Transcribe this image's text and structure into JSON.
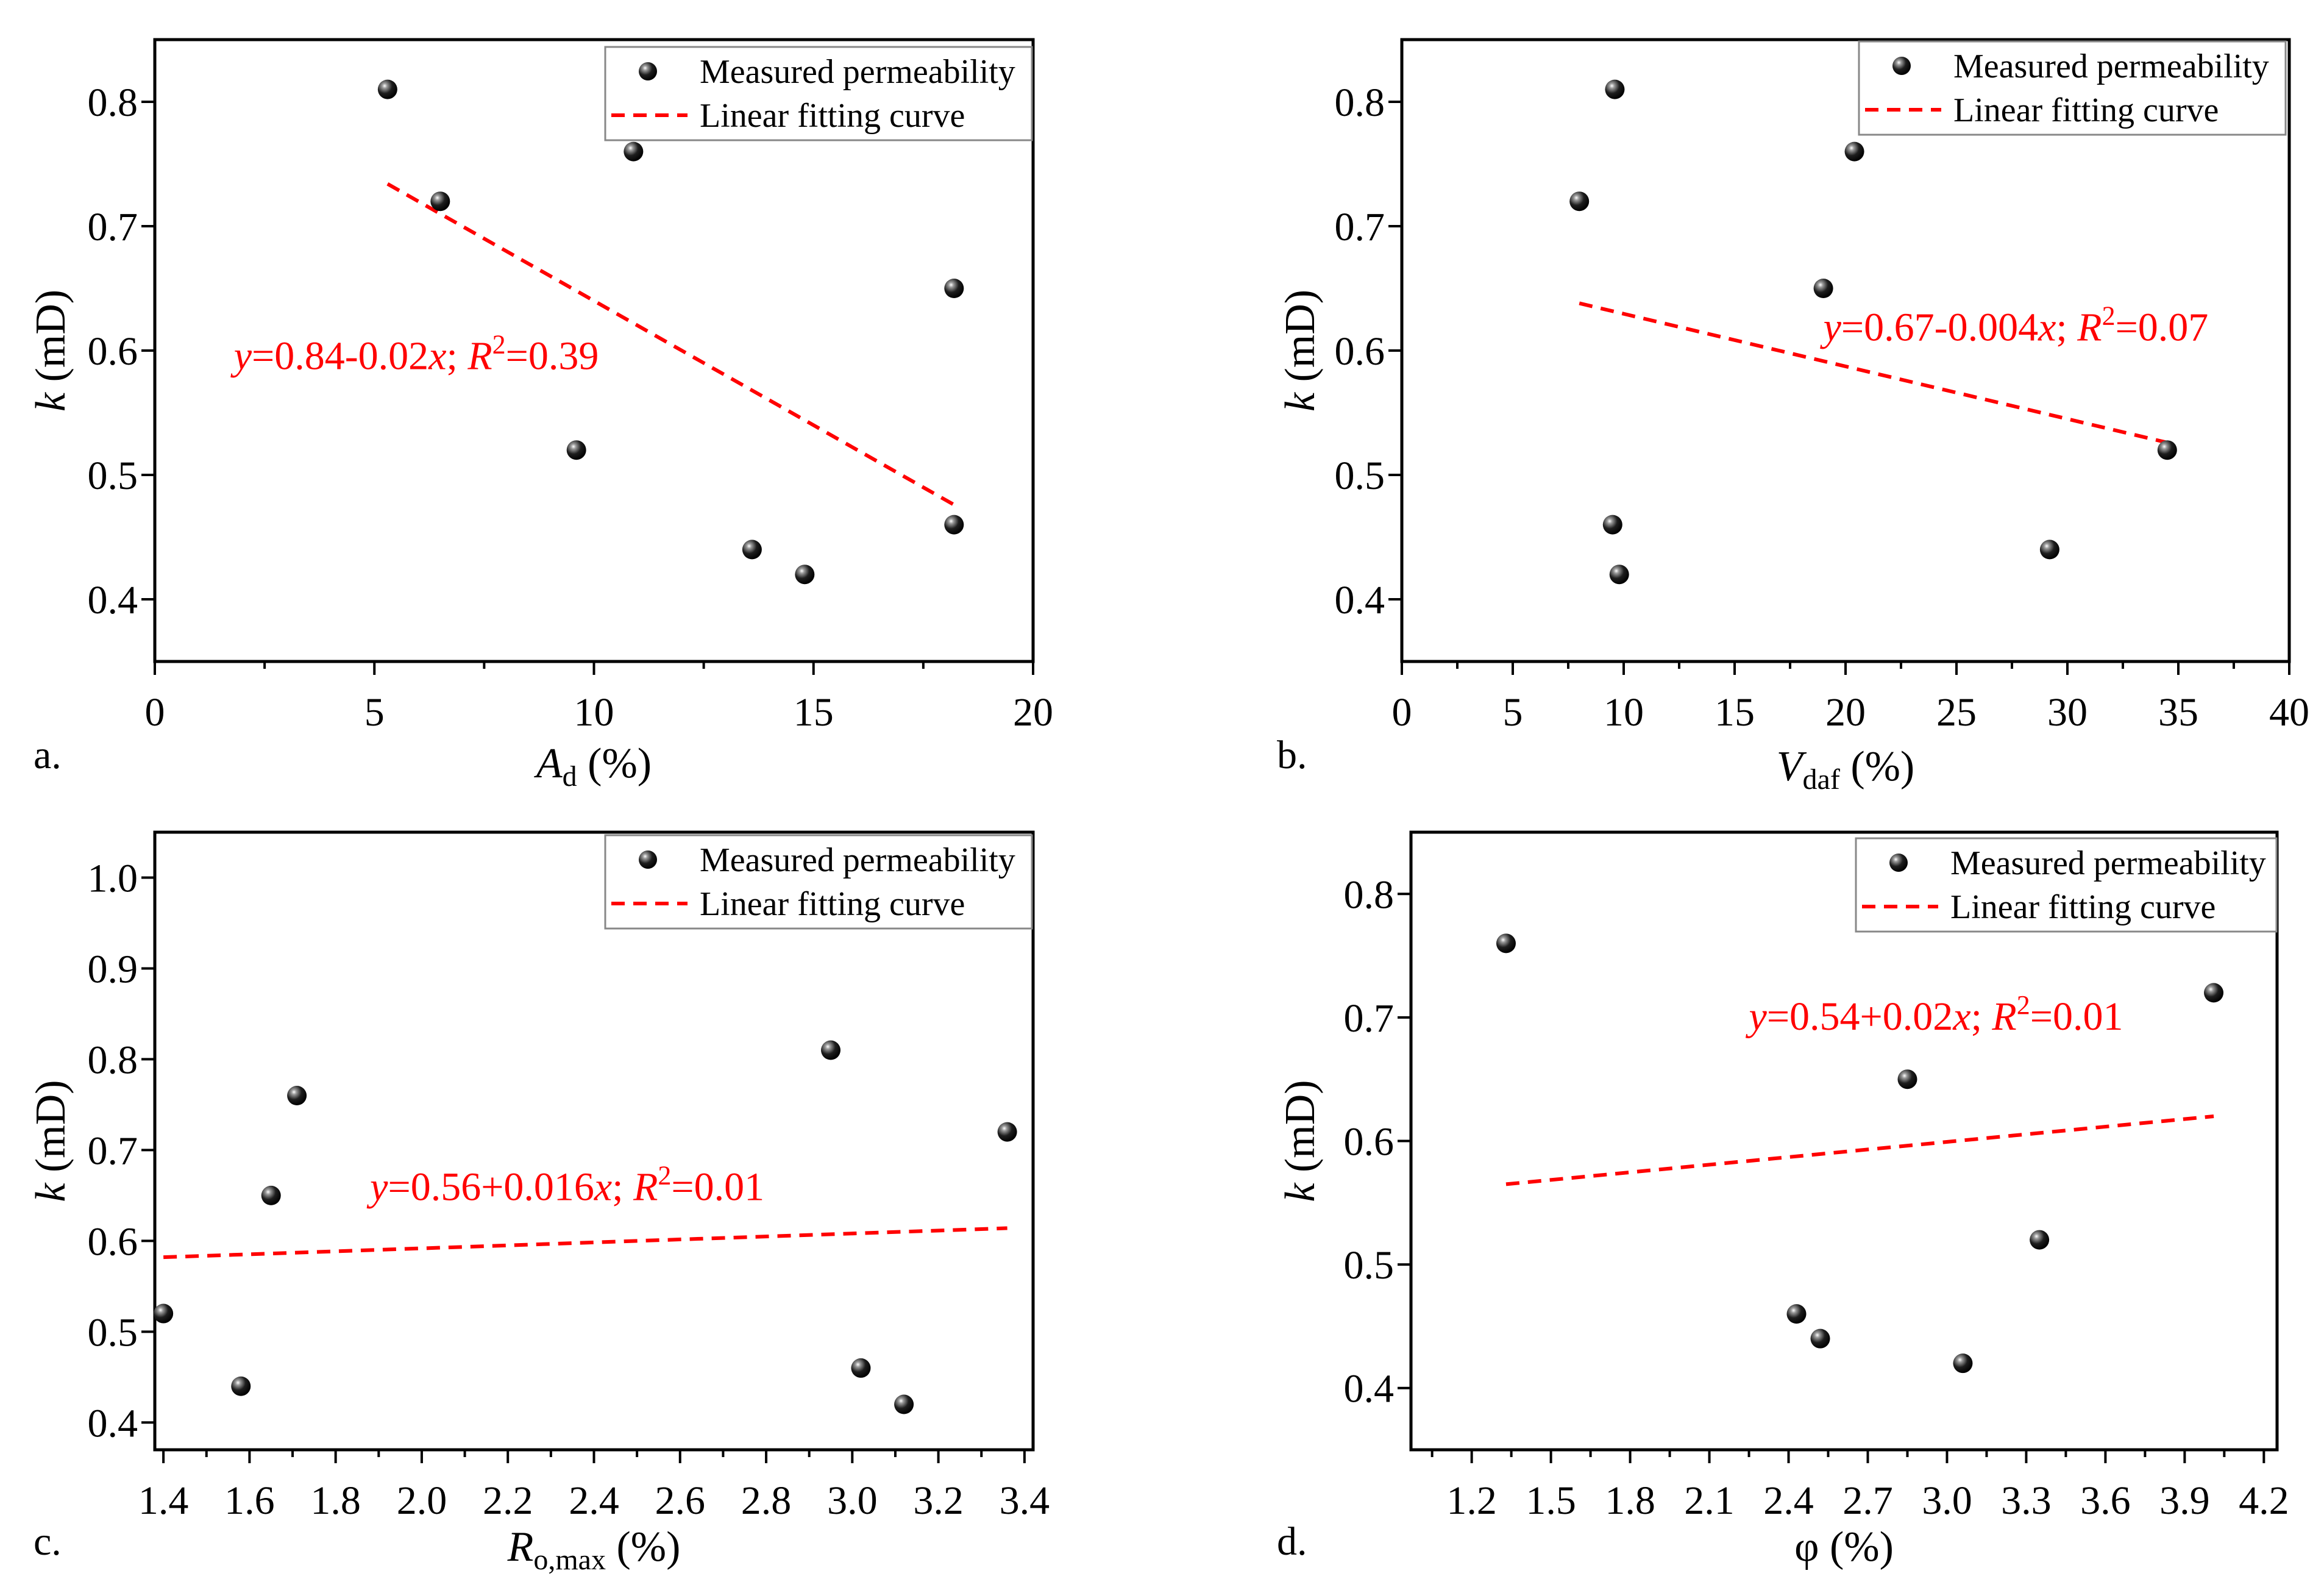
{
  "legend": {
    "measured": "Measured permeability",
    "fit": "Linear fitting curve"
  },
  "colors": {
    "points": "#111111",
    "fit": "#ff0000"
  },
  "chart_data": [
    {
      "type": "scatter",
      "panel": "a.",
      "xlabel_main": "A",
      "xlabel_sub": "d",
      "xlabel_unit": " (%)",
      "ylabel_italic": "k",
      "ylabel_unit": " (mD)",
      "xlim": [
        0,
        20
      ],
      "ylim": [
        0.35,
        0.85
      ],
      "xticks": [
        "0",
        "5",
        "10",
        "15",
        "20"
      ],
      "xtick_values": [
        0,
        5,
        10,
        15,
        20
      ],
      "xminor": [
        2.5,
        7.5,
        12.5,
        17.5
      ],
      "yticks": [
        "0.4",
        "0.5",
        "0.6",
        "0.7",
        "0.8"
      ],
      "ytick_values": [
        0.4,
        0.5,
        0.6,
        0.7,
        0.8
      ],
      "x": [
        5.3,
        6.5,
        9.6,
        10.9,
        13.6,
        14.8,
        18.2,
        18.2
      ],
      "y": [
        0.81,
        0.72,
        0.52,
        0.76,
        0.44,
        0.42,
        0.65,
        0.46
      ],
      "fit": {
        "x": [
          5.3,
          18.3
        ],
        "y": [
          0.734,
          0.474
        ]
      },
      "equation": {
        "y": "y",
        "rest": "=0.84-0.02",
        "x": "x",
        "mid": "; ",
        "R": "R",
        "sup": "2",
        "end": "=0.39"
      },
      "equation_pos": [
        1.8,
        0.585
      ]
    },
    {
      "type": "scatter",
      "panel": "b.",
      "xlabel_main": "V",
      "xlabel_sub": "daf",
      "xlabel_unit": " (%)",
      "ylabel_italic": "k",
      "ylabel_unit": " (mD)",
      "xlim": [
        0,
        40
      ],
      "ylim": [
        0.35,
        0.85
      ],
      "xticks": [
        "0",
        "5",
        "10",
        "15",
        "20",
        "25",
        "30",
        "35",
        "40"
      ],
      "xtick_values": [
        0,
        5,
        10,
        15,
        20,
        25,
        30,
        35,
        40
      ],
      "xminor": [
        2.5,
        7.5,
        12.5,
        17.5,
        22.5,
        27.5,
        32.5,
        37.5
      ],
      "yticks": [
        "0.4",
        "0.5",
        "0.6",
        "0.7",
        "0.8"
      ],
      "ytick_values": [
        0.4,
        0.5,
        0.6,
        0.7,
        0.8
      ],
      "x": [
        9.6,
        8.0,
        20.4,
        19.0,
        9.5,
        9.8,
        34.5,
        29.2
      ],
      "y": [
        0.81,
        0.72,
        0.76,
        0.65,
        0.46,
        0.42,
        0.52,
        0.44
      ],
      "fit": {
        "x": [
          8.0,
          34.5
        ],
        "y": [
          0.638,
          0.526
        ]
      },
      "equation": {
        "y": "y",
        "rest": "=0.67-0.004",
        "x": "x",
        "mid": "; ",
        "R": "R",
        "sup": "2",
        "end": "=0.07"
      },
      "equation_pos": [
        19.0,
        0.608
      ]
    },
    {
      "type": "scatter",
      "panel": "c.",
      "xlabel_main": "R",
      "xlabel_sub": "o,max",
      "xlabel_unit": " (%)",
      "ylabel_italic": "k",
      "ylabel_unit": " (mD)",
      "xlim": [
        1.38,
        3.42
      ],
      "ylim": [
        0.37,
        1.05
      ],
      "xticks": [
        "1.4",
        "1.6",
        "1.8",
        "2.0",
        "2.2",
        "2.4",
        "2.6",
        "2.8",
        "3.0",
        "3.2",
        "3.4"
      ],
      "xtick_values": [
        1.4,
        1.6,
        1.8,
        2.0,
        2.2,
        2.4,
        2.6,
        2.8,
        3.0,
        3.2,
        3.4
      ],
      "xminor": [
        1.5,
        1.7,
        1.9,
        2.1,
        2.3,
        2.5,
        2.7,
        2.9,
        3.1,
        3.3
      ],
      "yticks": [
        "0.4",
        "0.5",
        "0.6",
        "0.7",
        "0.8",
        "0.9",
        "1.0"
      ],
      "ytick_values": [
        0.4,
        0.5,
        0.6,
        0.7,
        0.8,
        0.9,
        1.0
      ],
      "x": [
        1.4,
        1.58,
        1.65,
        1.71,
        2.95,
        3.02,
        3.12,
        3.36
      ],
      "y": [
        0.52,
        0.44,
        0.65,
        0.76,
        0.81,
        0.46,
        0.42,
        0.72
      ],
      "fit": {
        "x": [
          1.4,
          3.36
        ],
        "y": [
          0.582,
          0.614
        ]
      },
      "equation": {
        "y": "y",
        "rest": "=0.56+0.016",
        "x": "x",
        "mid": "; ",
        "R": "R",
        "sup": "2",
        "end": "=0.01"
      },
      "equation_pos": [
        1.88,
        0.645
      ]
    },
    {
      "type": "scatter",
      "panel": "d.",
      "xlabel_main": "φ",
      "xlabel_sub": "",
      "xlabel_unit": " (%)",
      "xlabel_italic": false,
      "ylabel_italic": "k",
      "ylabel_unit": " (mD)",
      "xlim": [
        0.97,
        4.25
      ],
      "ylim": [
        0.35,
        0.85
      ],
      "xticks": [
        "1.2",
        "1.5",
        "1.8",
        "2.1",
        "2.4",
        "2.7",
        "3.0",
        "3.3",
        "3.6",
        "3.9",
        "4.2"
      ],
      "xtick_values": [
        1.2,
        1.5,
        1.8,
        2.1,
        2.4,
        2.7,
        3.0,
        3.3,
        3.6,
        3.9,
        4.2
      ],
      "xminor": [
        1.05,
        1.35,
        1.65,
        1.95,
        2.25,
        2.55,
        2.85,
        3.15,
        3.45,
        3.75,
        4.05
      ],
      "yticks": [
        "0.4",
        "0.5",
        "0.6",
        "0.7",
        "0.8"
      ],
      "ytick_values": [
        0.4,
        0.5,
        0.6,
        0.7,
        0.8
      ],
      "x": [
        1.33,
        2.43,
        2.52,
        2.85,
        3.06,
        3.35,
        4.01
      ],
      "y": [
        0.76,
        0.46,
        0.44,
        0.65,
        0.42,
        0.52,
        0.72
      ],
      "fit": {
        "x": [
          1.33,
          4.01
        ],
        "y": [
          0.565,
          0.62
        ]
      },
      "equation": {
        "y": "y",
        "rest": "=0.54+0.02",
        "x": "x",
        "mid": "; ",
        "R": "R",
        "sup": "2",
        "end": "=0.01"
      },
      "equation_pos": [
        2.25,
        0.69
      ]
    }
  ]
}
